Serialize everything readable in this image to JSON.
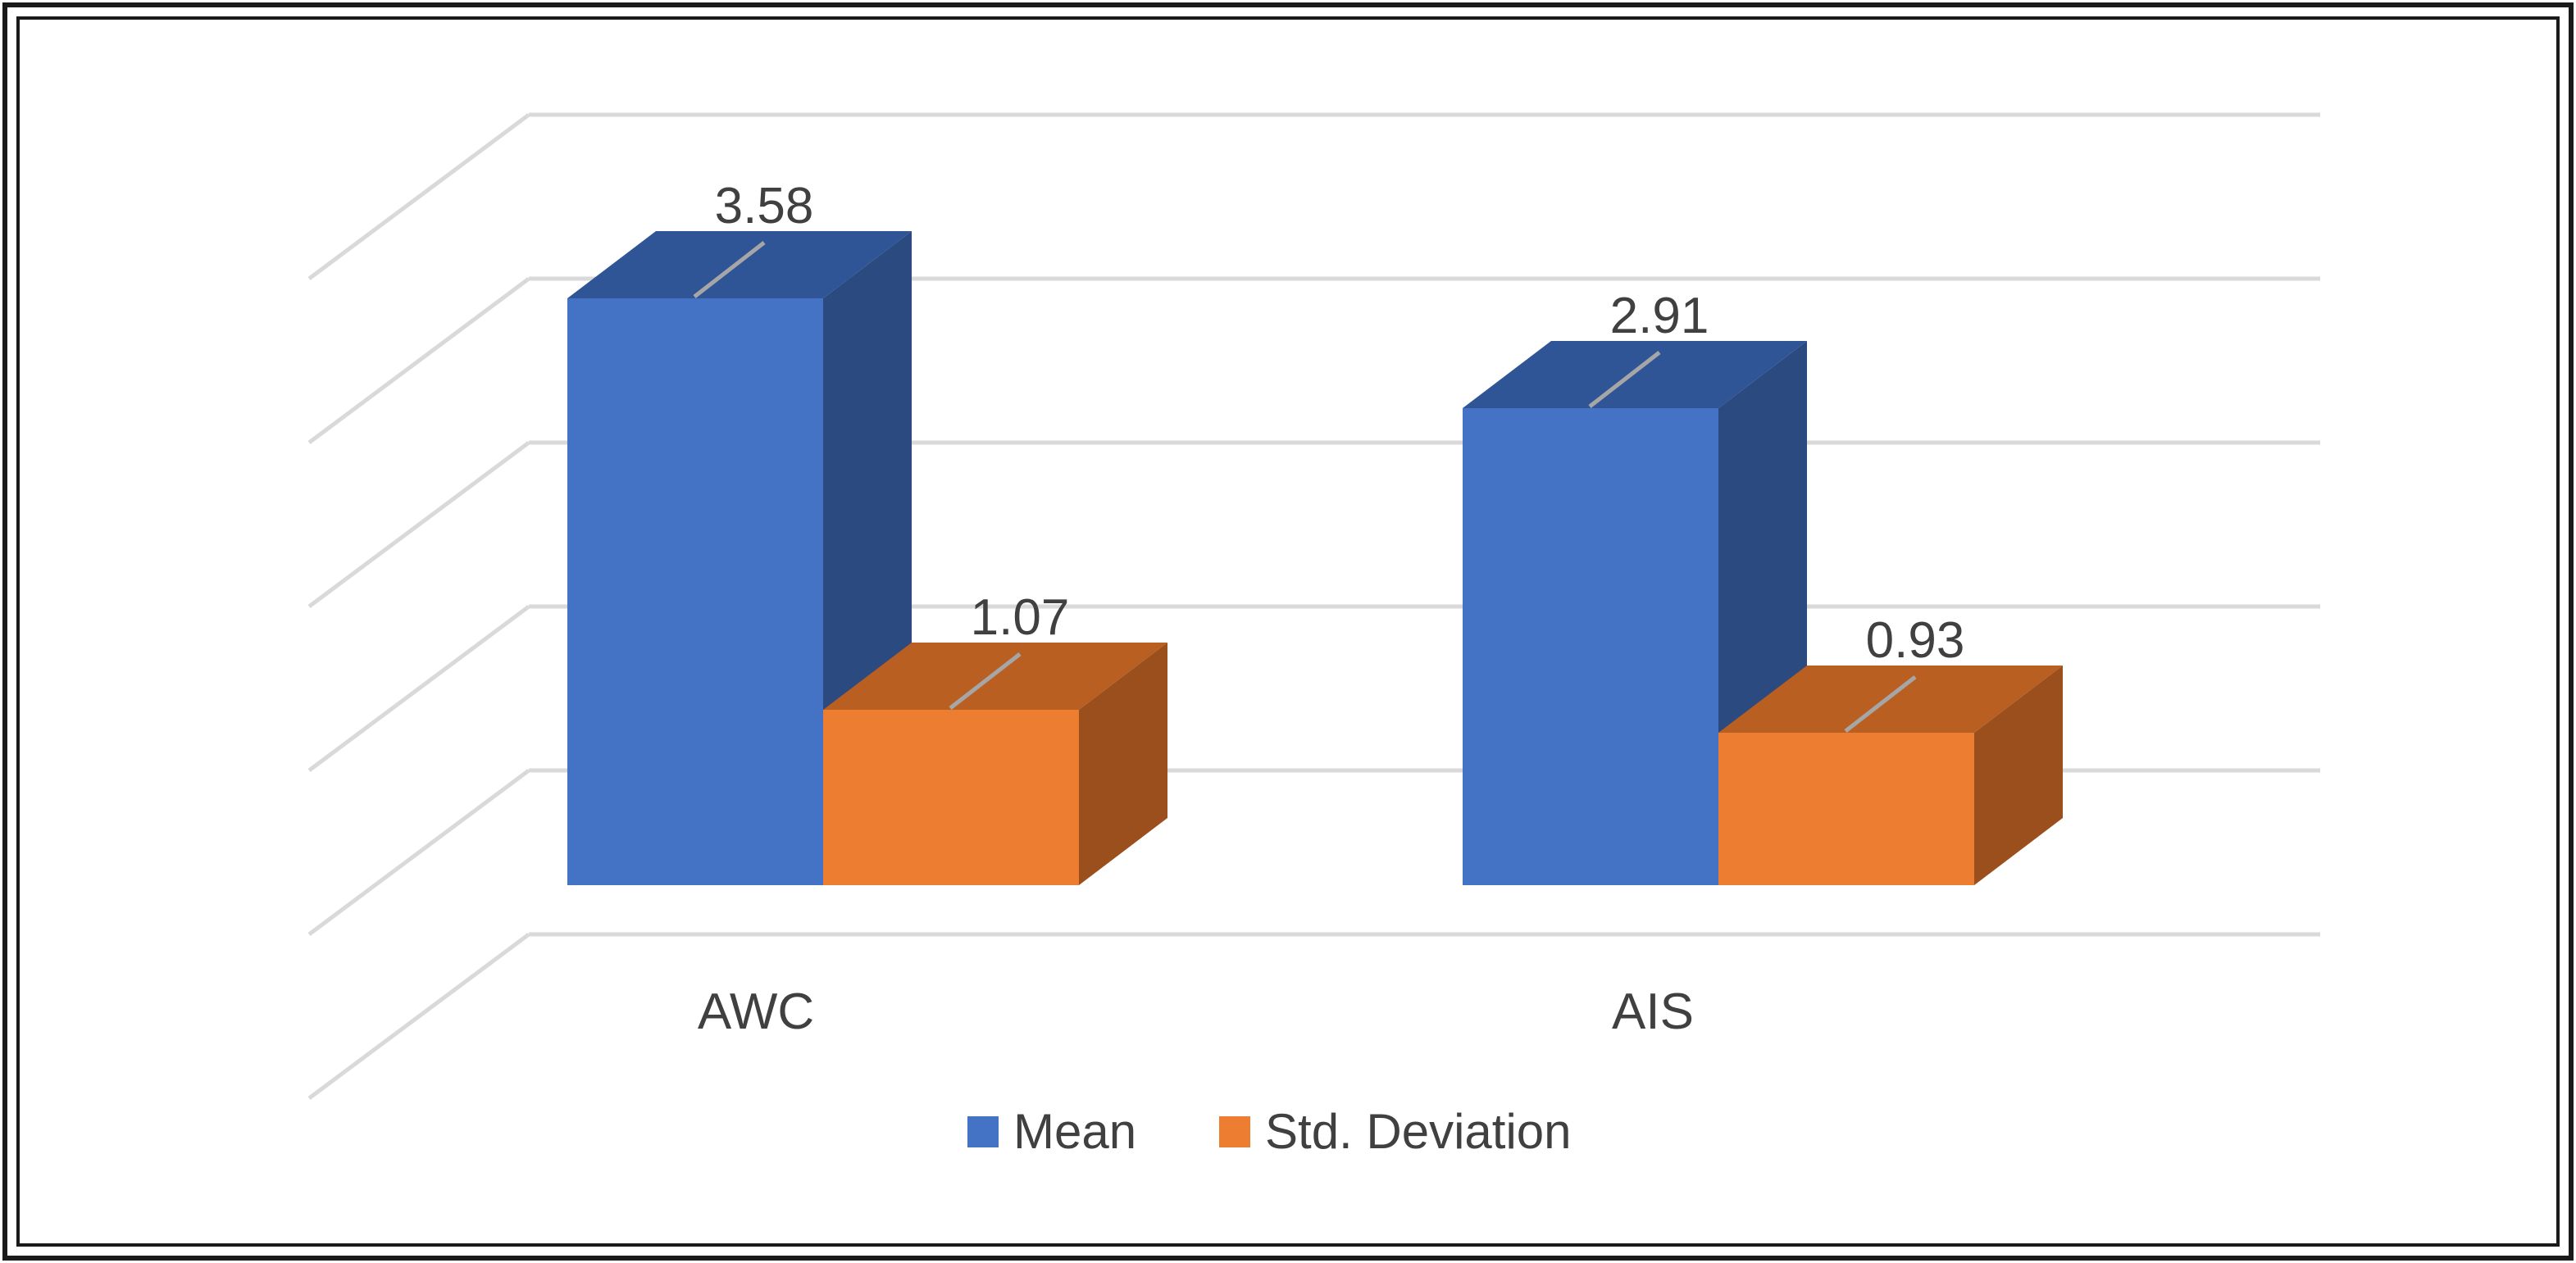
{
  "chart_data": {
    "type": "bar",
    "style": "3d-clustered",
    "title": "",
    "xlabel": "",
    "ylabel": "",
    "categories": [
      "AWC",
      "AIS"
    ],
    "series": [
      {
        "name": "Mean",
        "values": [
          3.58,
          2.91
        ],
        "color": "#4472C4",
        "top_color": "#2F5597",
        "side_color": "#2A4A80"
      },
      {
        "name": "Std. Deviation",
        "values": [
          1.07,
          0.93
        ],
        "color": "#ED7D31",
        "top_color": "#B85F21",
        "side_color": "#9A4F1C"
      }
    ],
    "data_labels": [
      [
        "3.58",
        "2.91"
      ],
      [
        "1.07",
        "0.93"
      ]
    ],
    "ylim": [
      0,
      4.5
    ],
    "gridlines": true,
    "legend_position": "bottom"
  }
}
